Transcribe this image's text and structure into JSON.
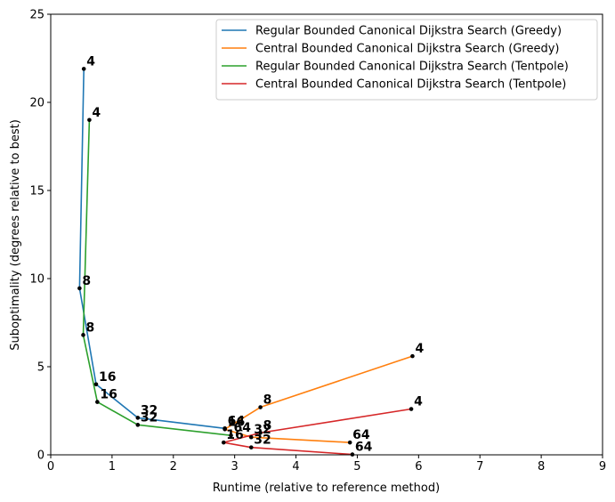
{
  "chart_data": {
    "type": "line",
    "xlabel": "Runtime (relative to reference method)",
    "ylabel": "Suboptimality (degrees relative to best)",
    "xlim": [
      0,
      9
    ],
    "ylim": [
      0,
      25
    ],
    "xticks": [
      0,
      1,
      2,
      3,
      4,
      5,
      6,
      7,
      8,
      9
    ],
    "yticks": [
      0,
      5,
      10,
      15,
      20,
      25
    ],
    "grid": false,
    "legend_position": "top-right",
    "series": [
      {
        "name": "Regular Bounded Canonical Dijkstra Search (Greedy)",
        "color": "#1f77b4",
        "points": [
          {
            "x": 0.54,
            "y": 21.9,
            "label": "4"
          },
          {
            "x": 0.47,
            "y": 9.45,
            "label": "8"
          },
          {
            "x": 0.74,
            "y": 4.0,
            "label": "16"
          },
          {
            "x": 1.42,
            "y": 2.1,
            "label": "32"
          },
          {
            "x": 2.84,
            "y": 1.5,
            "label": "64"
          }
        ]
      },
      {
        "name": "Central Bounded Canonical Dijkstra Search (Greedy)",
        "color": "#ff7f0e",
        "points": [
          {
            "x": 5.9,
            "y": 5.6,
            "label": "4"
          },
          {
            "x": 3.42,
            "y": 2.7,
            "label": "8"
          },
          {
            "x": 2.84,
            "y": 1.45,
            "label": "16"
          },
          {
            "x": 3.27,
            "y": 1.0,
            "label": "32"
          },
          {
            "x": 4.88,
            "y": 0.7,
            "label": "64"
          }
        ]
      },
      {
        "name": "Regular Bounded Canonical Dijkstra Search (Tentpole)",
        "color": "#2ca02c",
        "points": [
          {
            "x": 0.63,
            "y": 19.0,
            "label": "4"
          },
          {
            "x": 0.53,
            "y": 6.8,
            "label": "8"
          },
          {
            "x": 0.76,
            "y": 3.0,
            "label": "16"
          },
          {
            "x": 1.42,
            "y": 1.7,
            "label": "32"
          },
          {
            "x": 2.94,
            "y": 1.1,
            "label": "64"
          }
        ]
      },
      {
        "name": "Central Bounded Canonical Dijkstra Search (Tentpole)",
        "color": "#d62728",
        "points": [
          {
            "x": 5.88,
            "y": 2.6,
            "label": "4"
          },
          {
            "x": 3.42,
            "y": 1.25,
            "label": "8"
          },
          {
            "x": 2.82,
            "y": 0.7,
            "label": "16"
          },
          {
            "x": 3.27,
            "y": 0.42,
            "label": "32"
          },
          {
            "x": 4.92,
            "y": 0.02,
            "label": "64"
          }
        ]
      }
    ]
  }
}
